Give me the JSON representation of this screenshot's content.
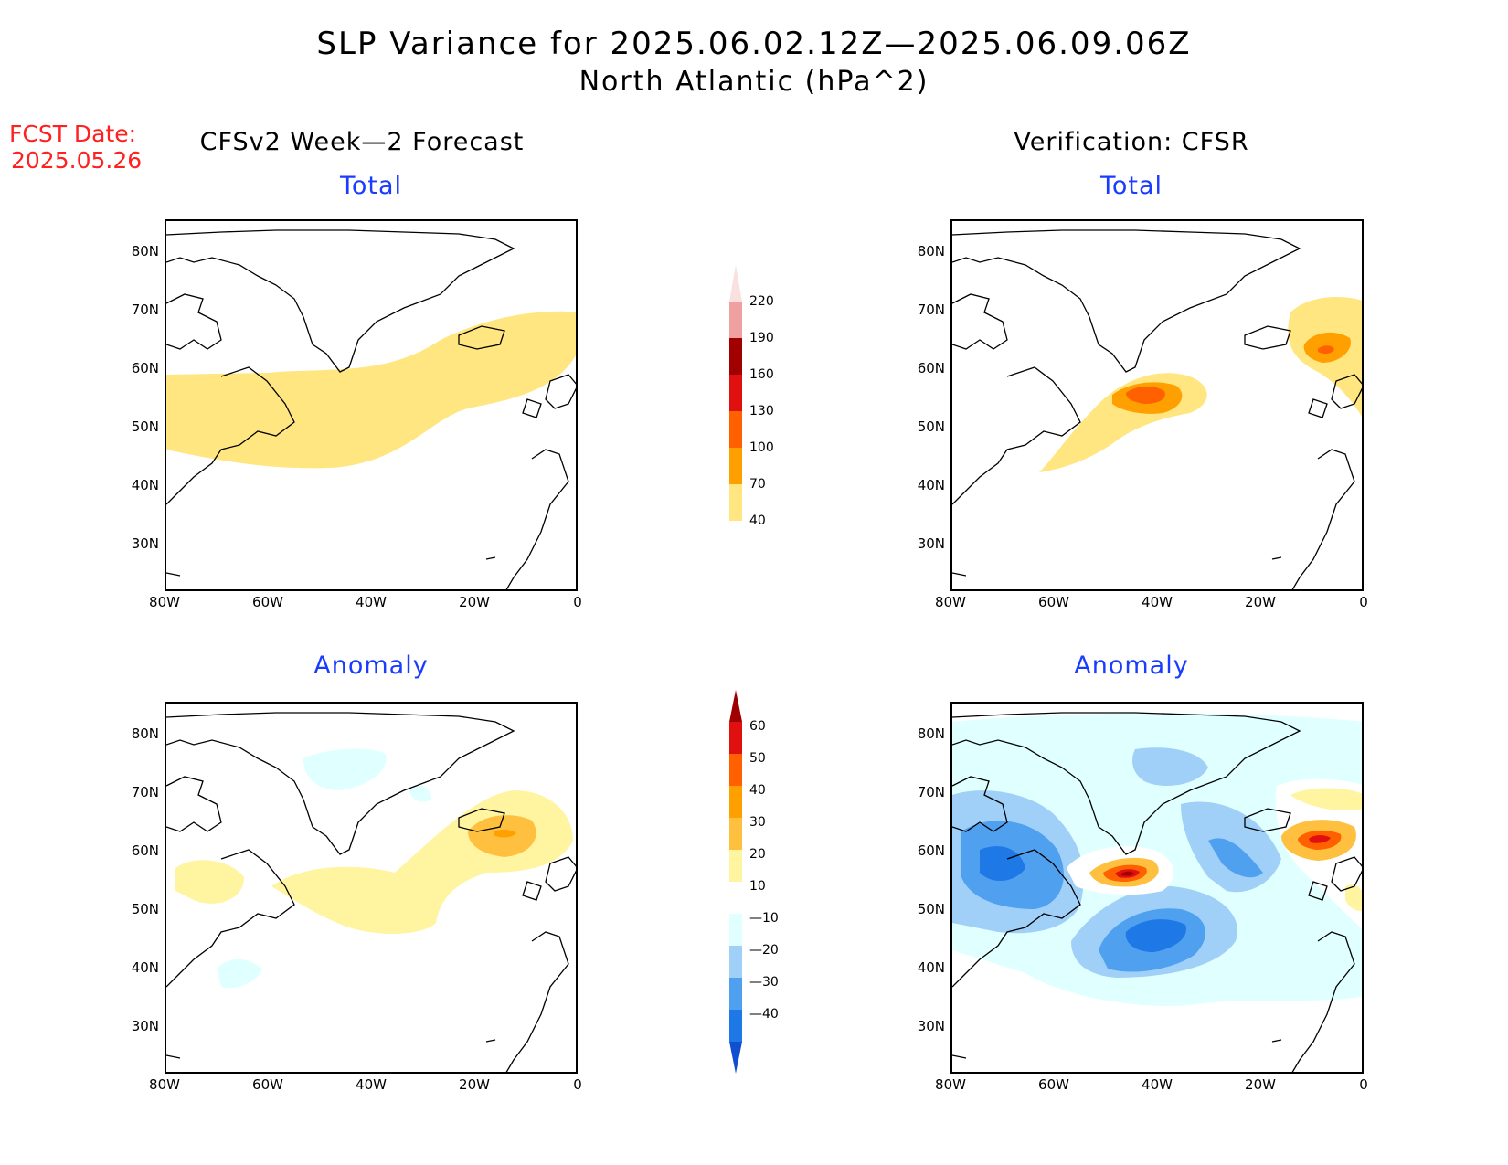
{
  "header": {
    "title_line1": "SLP Variance for 2025.06.02.12Z—2025.06.09.06Z",
    "title_line2": "North Atlantic (hPa^2)",
    "fcst_label": "FCST Date:",
    "fcst_date": "2025.05.26"
  },
  "columns": {
    "left_title": "CFSv2 Week—2 Forecast",
    "right_title": "Verification: CFSR"
  },
  "panels": {
    "total_label": "Total",
    "anomaly_label": "Anomaly"
  },
  "axes": {
    "lat_labels": [
      "80N",
      "70N",
      "60N",
      "50N",
      "40N",
      "30N"
    ],
    "lon_labels": [
      "80W",
      "60W",
      "40W",
      "20W",
      "0"
    ]
  },
  "colorbars": {
    "total": {
      "labels": [
        "220",
        "190",
        "160",
        "130",
        "100",
        "70",
        "40"
      ],
      "colors": [
        "#fbe0e0",
        "#f0a0a0",
        "#a00000",
        "#e01010",
        "#ff6000",
        "#ffa000",
        "#ffe680"
      ]
    },
    "anomaly": {
      "labels": [
        "60",
        "50",
        "40",
        "30",
        "20",
        "10",
        "—10",
        "—20",
        "—30",
        "—40"
      ],
      "colors": [
        "#a00000",
        "#e01010",
        "#ff6000",
        "#ffa000",
        "#ffc040",
        "#fff4a0",
        "#ffffff",
        "#e0ffff",
        "#a0d0f8",
        "#50a0f0",
        "#1e78e6",
        "#1050d0"
      ]
    }
  }
}
